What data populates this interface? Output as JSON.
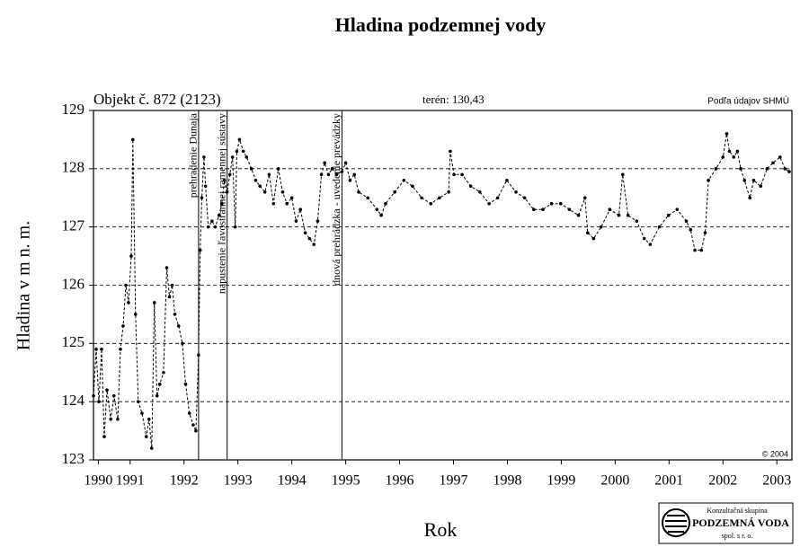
{
  "chart_data": {
    "type": "line",
    "title": "Hladina podzemnej vody",
    "object_label": "Objekt č. 872 (2123)",
    "terrain_label": "terén: 130,43",
    "source": "Podľa údajov SHMÚ",
    "copyright": "© 2004",
    "y_label": "Hladina v m n. m.",
    "x_label": "Rok",
    "logo": [
      "Konzultačná skupina",
      "PODZEMNÁ VODA",
      "spol. s r. o."
    ],
    "annotations": [
      {
        "x": 1992.77,
        "text": "prehradenie Dunaja"
      },
      {
        "x": 1993.3,
        "text": "napustenie ľavostrannej ramennej sústavy"
      },
      {
        "x": 1995.43,
        "text": "dnová prehrádzka - uvedenie prevádzky"
      }
    ],
    "xlim": [
      1990.82,
      2003.78
    ],
    "xticks": [
      {
        "value": 1990.91,
        "label": "1990"
      },
      {
        "value": 1991.5,
        "label": "1991"
      },
      {
        "value": 1992.5,
        "label": "1992"
      },
      {
        "value": 1993.5,
        "label": "1993"
      },
      {
        "value": 1994.5,
        "label": "1994"
      },
      {
        "value": 1995.5,
        "label": "1995"
      },
      {
        "value": 1996.5,
        "label": "1996"
      },
      {
        "value": 1997.5,
        "label": "1997"
      },
      {
        "value": 1998.5,
        "label": "1998"
      },
      {
        "value": 1999.5,
        "label": "1999"
      },
      {
        "value": 2000.5,
        "label": "2000"
      },
      {
        "value": 2001.5,
        "label": "2001"
      },
      {
        "value": 2002.5,
        "label": "2002"
      },
      {
        "value": 2003.5,
        "label": "2003"
      }
    ],
    "ylim": [
      123,
      129
    ],
    "yticks": [
      123,
      124,
      125,
      126,
      127,
      128,
      129
    ],
    "grid": true,
    "x": [
      1990.82,
      1990.87,
      1990.92,
      1990.97,
      1991.02,
      1991.07,
      1991.14,
      1991.2,
      1991.27,
      1991.32,
      1991.37,
      1991.42,
      1991.47,
      1991.52,
      1991.55,
      1991.6,
      1991.65,
      1991.72,
      1991.8,
      1991.85,
      1991.9,
      1991.95,
      1992.0,
      1992.05,
      1992.12,
      1992.18,
      1992.23,
      1992.28,
      1992.33,
      1992.4,
      1992.47,
      1992.53,
      1992.6,
      1992.67,
      1992.72,
      1992.77,
      1992.8,
      1992.83,
      1992.87,
      1992.9,
      1992.95,
      1993.02,
      1993.08,
      1993.15,
      1993.2,
      1993.25,
      1993.3,
      1993.35,
      1993.4,
      1993.45,
      1993.48,
      1993.53,
      1993.6,
      1993.66,
      1993.75,
      1993.83,
      1993.91,
      1994.0,
      1994.08,
      1994.16,
      1994.25,
      1994.33,
      1994.41,
      1994.5,
      1994.58,
      1994.66,
      1994.75,
      1994.83,
      1994.91,
      1994.98,
      1995.05,
      1995.11,
      1995.18,
      1995.25,
      1995.33,
      1995.43,
      1995.5,
      1995.58,
      1995.66,
      1995.74,
      1995.91,
      1996.08,
      1996.16,
      1996.24,
      1996.41,
      1996.58,
      1996.74,
      1996.91,
      1997.08,
      1997.24,
      1997.41,
      1997.44,
      1997.51,
      1997.66,
      1997.82,
      1997.99,
      1998.16,
      1998.32,
      1998.49,
      1998.66,
      1998.82,
      1998.99,
      1999.16,
      1999.32,
      1999.49,
      1999.65,
      1999.82,
      1999.94,
      1999.99,
      2000.1,
      2000.24,
      2000.4,
      2000.57,
      2000.64,
      2000.74,
      2000.9,
      2001.04,
      2001.15,
      2001.32,
      2001.49,
      2001.65,
      2001.82,
      2001.9,
      2001.98,
      2002.1,
      2002.17,
      2002.23,
      2002.37,
      2002.5,
      2002.57,
      2002.62,
      2002.7,
      2002.77,
      2002.83,
      2002.9,
      2003.0,
      2003.07,
      2003.2,
      2003.32,
      2003.43,
      2003.56,
      2003.65,
      2003.73
    ],
    "series": [
      {
        "color": "#000000",
        "values": [
          124.1,
          124.9,
          124.0,
          124.9,
          123.4,
          124.2,
          123.7,
          124.1,
          123.7,
          124.9,
          125.3,
          126.0,
          125.7,
          126.5,
          128.5,
          125.5,
          124.0,
          123.8,
          123.4,
          123.7,
          123.2,
          125.7,
          124.1,
          124.3,
          124.5,
          126.3,
          125.8,
          126.0,
          125.5,
          125.3,
          125.0,
          124.3,
          123.8,
          123.6,
          123.5,
          124.8,
          126.6,
          127.5,
          128.2,
          127.7,
          127.0,
          127.1,
          127.0,
          127.2,
          127.4,
          127.8,
          127.6,
          127.9,
          128.2,
          127.0,
          128.3,
          128.5,
          128.3,
          128.2,
          128.0,
          127.8,
          127.7,
          127.6,
          127.9,
          127.4,
          128.0,
          127.6,
          127.4,
          127.5,
          127.1,
          127.3,
          126.9,
          126.8,
          126.7,
          127.1,
          127.9,
          128.1,
          127.9,
          128.0,
          127.9,
          127.95,
          128.1,
          127.8,
          127.9,
          127.6,
          127.5,
          127.3,
          127.2,
          127.4,
          127.6,
          127.8,
          127.7,
          127.5,
          127.4,
          127.5,
          127.6,
          128.3,
          127.9,
          127.9,
          127.7,
          127.6,
          127.4,
          127.5,
          127.8,
          127.6,
          127.5,
          127.3,
          127.3,
          127.4,
          127.4,
          127.3,
          127.2,
          127.5,
          126.9,
          126.8,
          127.0,
          127.3,
          127.2,
          127.9,
          127.2,
          127.1,
          126.8,
          126.7,
          127.0,
          127.2,
          127.3,
          127.1,
          126.95,
          126.6,
          126.6,
          126.9,
          127.8,
          128.0,
          128.2,
          128.6,
          128.3,
          128.2,
          128.3,
          128.0,
          127.8,
          127.5,
          127.8,
          127.7,
          128.0,
          128.1,
          128.2,
          128.0,
          127.95
        ]
      }
    ]
  }
}
